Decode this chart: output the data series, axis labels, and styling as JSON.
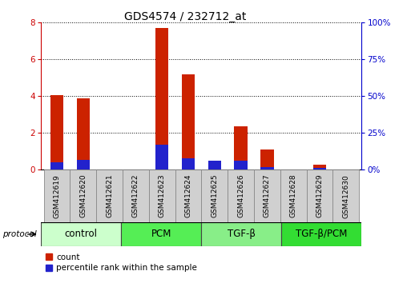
{
  "title": "GDS4574 / 232712_at",
  "samples": [
    "GSM412619",
    "GSM412620",
    "GSM412621",
    "GSM412622",
    "GSM412623",
    "GSM412624",
    "GSM412625",
    "GSM412626",
    "GSM412627",
    "GSM412628",
    "GSM412629",
    "GSM412630"
  ],
  "count_values": [
    4.05,
    3.9,
    0,
    0,
    7.7,
    5.2,
    0,
    2.35,
    1.1,
    0,
    0.28,
    0
  ],
  "percentile_values": [
    5,
    7,
    0,
    0,
    17,
    8,
    6,
    6,
    2,
    0,
    1.5,
    0
  ],
  "groups": [
    {
      "label": "control",
      "start": 0,
      "end": 3,
      "color": "#ccffcc"
    },
    {
      "label": "PCM",
      "start": 3,
      "end": 6,
      "color": "#55ee55"
    },
    {
      "label": "TGF-β",
      "start": 6,
      "end": 9,
      "color": "#88ee88"
    },
    {
      "label": "TGF-β/PCM",
      "start": 9,
      "end": 12,
      "color": "#33dd33"
    }
  ],
  "ylim_left": [
    0,
    8
  ],
  "ylim_right": [
    0,
    100
  ],
  "yticks_left": [
    0,
    2,
    4,
    6,
    8
  ],
  "yticks_right": [
    0,
    25,
    50,
    75,
    100
  ],
  "ytick_labels_right": [
    "0%",
    "25%",
    "50%",
    "75%",
    "100%"
  ],
  "bar_color_count": "#cc2200",
  "bar_color_percentile": "#2222cc",
  "bg_color": "#ffffff",
  "legend_count": "count",
  "legend_percentile": "percentile rank within the sample",
  "protocol_label": "protocol",
  "left_axis_color": "#cc0000",
  "right_axis_color": "#0000cc",
  "grid_color": "#000000",
  "group_label_fontsize": 8.5,
  "tick_label_fontsize": 7.5,
  "title_fontsize": 10,
  "bar_width": 0.5,
  "sample_cell_color": "#d0d0d0",
  "sample_cell_edge": "#888888"
}
